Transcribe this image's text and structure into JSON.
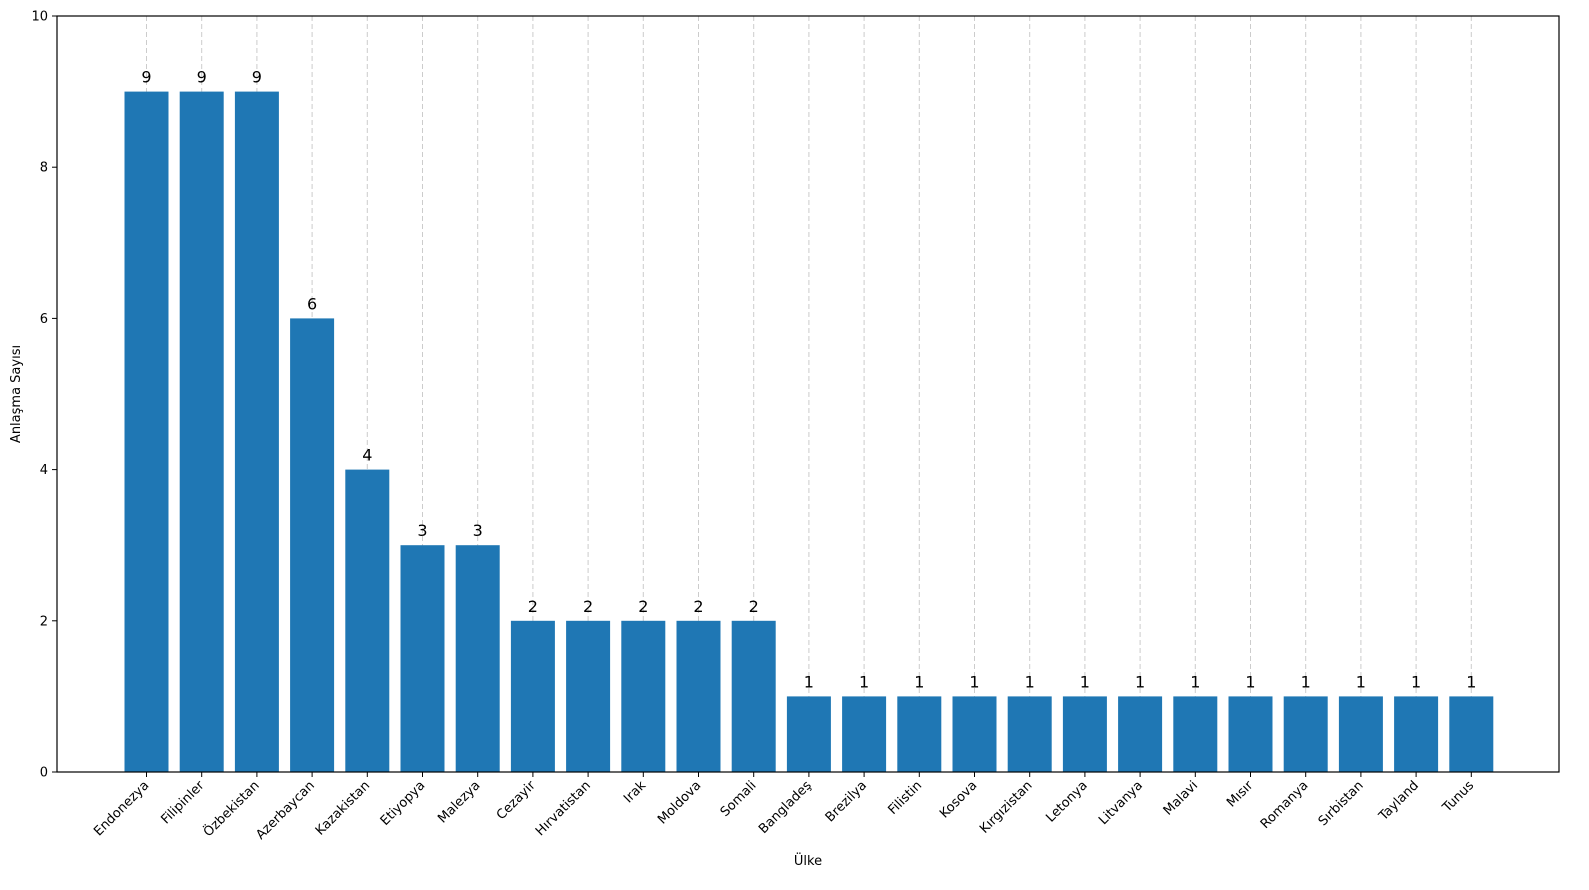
{
  "chart_data": {
    "type": "bar",
    "title": "",
    "xlabel": "Ülke",
    "ylabel": "Anlaşma Sayısı",
    "ylim": [
      0,
      10
    ],
    "yticks": [
      0,
      2,
      4,
      6,
      8,
      10
    ],
    "grid": "x-dashed",
    "bar_color": "#1f77b4",
    "grid_color": "#cccccc",
    "categories": [
      "Endonezya",
      "Filipinler",
      "Özbekistan",
      "Azerbaycan",
      "Kazakistan",
      "Etiyopya",
      "Malezya",
      "Cezayir",
      "Hırvatistan",
      "Irak",
      "Moldova",
      "Somali",
      "Bangladeş",
      "Brezilya",
      "Filistin",
      "Kosova",
      "Kırgızistan",
      "Letonya",
      "Litvanya",
      "Malavi",
      "Mısır",
      "Romanya",
      "Sırbistan",
      "Tayland",
      "Tunus"
    ],
    "values": [
      9,
      9,
      9,
      6,
      4,
      3,
      3,
      2,
      2,
      2,
      2,
      2,
      1,
      1,
      1,
      1,
      1,
      1,
      1,
      1,
      1,
      1,
      1,
      1,
      1
    ]
  }
}
